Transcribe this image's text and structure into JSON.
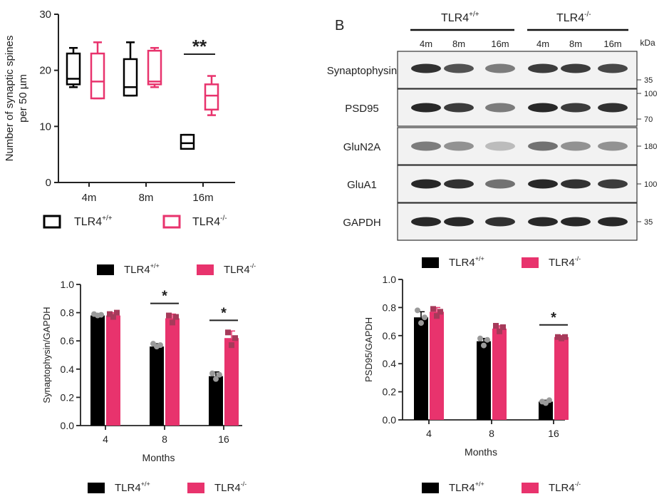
{
  "colors": {
    "wt": "#000000",
    "ko": "#e8336d",
    "blot_bg": "#f2f2f2",
    "band": "#1c1c1c"
  },
  "legend": {
    "wt": "TLR4",
    "wt_sup": "+/+",
    "ko": "TLR4",
    "ko_sup": "-/-"
  },
  "chart_data": [
    {
      "id": "spines",
      "type": "box",
      "xlabel": "",
      "ylabel": [
        "Number of synaptic spines",
        "per 50 µm"
      ],
      "ylim": [
        0,
        30
      ],
      "yticks": [
        "0",
        "10",
        "20",
        "30"
      ],
      "categories": [
        "4m",
        "8m",
        "16m"
      ],
      "series": [
        {
          "name": "TLR4+/+",
          "boxes": [
            {
              "min": 17,
              "q1": 17.5,
              "median": 18.5,
              "q3": 23,
              "max": 24
            },
            {
              "min": 15.5,
              "q1": 15.5,
              "median": 17,
              "q3": 22,
              "max": 25
            },
            {
              "min": 6,
              "q1": 6,
              "median": 7,
              "q3": 8.5,
              "max": 8.5
            }
          ]
        },
        {
          "name": "TLR4-/-",
          "boxes": [
            {
              "min": 15,
              "q1": 15,
              "median": 18,
              "q3": 23,
              "max": 25
            },
            {
              "min": 17,
              "q1": 17.5,
              "median": 18,
              "q3": 23.5,
              "max": 24
            },
            {
              "min": 12,
              "q1": 13,
              "median": 15.5,
              "q3": 17.5,
              "max": 19
            }
          ]
        }
      ],
      "annotations": [
        {
          "category": "16m",
          "text": "**"
        }
      ]
    },
    {
      "id": "synaptophysin",
      "type": "bar",
      "xlabel": "Months",
      "ylabel": "Synaptophysin/GAPDH",
      "ylim": [
        0,
        1.0
      ],
      "yticks": [
        "0.0",
        "0.2",
        "0.4",
        "0.6",
        "0.8",
        "1.0"
      ],
      "categories": [
        "4",
        "8",
        "16"
      ],
      "series": [
        {
          "name": "TLR4+/+",
          "values": [
            0.78,
            0.56,
            0.35
          ],
          "errors": [
            0.01,
            0.02,
            0.03
          ],
          "points": [
            [
              0.79,
              0.78,
              0.785
            ],
            [
              0.58,
              0.56,
              0.57
            ],
            [
              0.37,
              0.33,
              0.36
            ]
          ]
        },
        {
          "name": "TLR4-/-",
          "values": [
            0.78,
            0.76,
            0.62
          ],
          "errors": [
            0.02,
            0.03,
            0.05
          ],
          "points": [
            [
              0.79,
              0.77,
              0.8
            ],
            [
              0.78,
              0.73,
              0.77
            ],
            [
              0.66,
              0.57,
              0.62
            ]
          ]
        }
      ],
      "annotations": [
        {
          "category": "8",
          "text": "*"
        },
        {
          "category": "16",
          "text": "*"
        }
      ]
    },
    {
      "id": "psd95",
      "type": "bar",
      "xlabel": "Months",
      "ylabel": "PSD95/GAPDH",
      "ylim": [
        0,
        1.0
      ],
      "yticks": [
        "0.0",
        "0.2",
        "0.4",
        "0.6",
        "0.8",
        "1.0"
      ],
      "categories": [
        "4",
        "8",
        "16"
      ],
      "series": [
        {
          "name": "TLR4+/+",
          "values": [
            0.73,
            0.56,
            0.13
          ],
          "errors": [
            0.04,
            0.02,
            0.01
          ],
          "points": [
            [
              0.78,
              0.69,
              0.73
            ],
            [
              0.58,
              0.53,
              0.57
            ],
            [
              0.13,
              0.12,
              0.14
            ]
          ]
        },
        {
          "name": "TLR4-/-",
          "values": [
            0.77,
            0.65,
            0.59
          ],
          "errors": [
            0.03,
            0.02,
            0.01
          ],
          "points": [
            [
              0.79,
              0.74,
              0.77
            ],
            [
              0.67,
              0.63,
              0.66
            ],
            [
              0.59,
              0.58,
              0.59
            ]
          ]
        }
      ],
      "annotations": [
        {
          "category": "16",
          "text": "*"
        }
      ]
    }
  ],
  "blot": {
    "panel_label": "B",
    "groups": [
      {
        "label": "TLR4",
        "sup": "+/+"
      },
      {
        "label": "TLR4",
        "sup": "-/-"
      }
    ],
    "lanes": [
      "4m",
      "8m",
      "16m",
      "4m",
      "8m",
      "16m"
    ],
    "kda_label": "kDa",
    "rows": [
      {
        "name": "Synaptophysin",
        "markers": [
          "35"
        ],
        "intensity": [
          0.9,
          0.75,
          0.55,
          0.85,
          0.85,
          0.8
        ]
      },
      {
        "name": "PSD95",
        "markers": [
          "100",
          "70"
        ],
        "intensity": [
          0.95,
          0.85,
          0.55,
          0.95,
          0.85,
          0.9
        ]
      },
      {
        "name": "GluN2A",
        "markers": [
          "180"
        ],
        "intensity": [
          0.55,
          0.45,
          0.25,
          0.6,
          0.45,
          0.45
        ]
      },
      {
        "name": "GluA1",
        "markers": [
          "100"
        ],
        "intensity": [
          0.95,
          0.9,
          0.6,
          0.95,
          0.9,
          0.85
        ]
      },
      {
        "name": "GAPDH",
        "markers": [
          "35"
        ],
        "intensity": [
          0.95,
          0.95,
          0.9,
          0.95,
          0.95,
          0.95
        ]
      }
    ]
  }
}
